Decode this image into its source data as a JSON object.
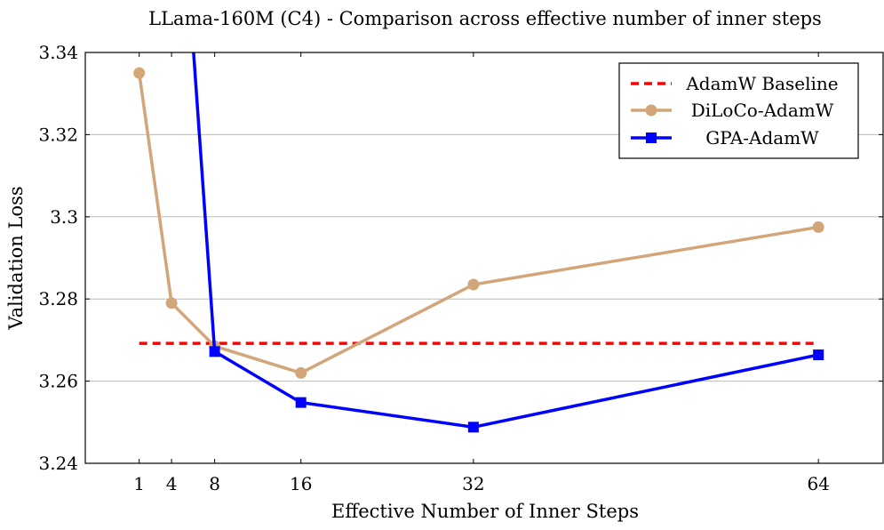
{
  "chart_data": {
    "type": "line",
    "title": "LLama-160M (C4) - Comparison across effective number of inner steps",
    "xlabel": "Effective Number of Inner Steps",
    "ylabel": "Validation Loss",
    "xlim": [
      -4,
      70
    ],
    "ylim": [
      3.24,
      3.34
    ],
    "xticks": [
      1,
      4,
      8,
      16,
      32,
      64
    ],
    "xtick_labels": [
      "1",
      "4",
      "8",
      "16",
      "32",
      "64"
    ],
    "yticks": [
      3.24,
      3.26,
      3.28,
      3.3,
      3.32,
      3.34
    ],
    "ytick_labels": [
      "3.24",
      "3.26",
      "3.28",
      "3.3",
      "3.32",
      "3.34"
    ],
    "grid": "horizontal",
    "legend_position": "top-right",
    "series": [
      {
        "name": "AdamW Baseline",
        "style": "dashed",
        "marker": "none",
        "color": "#ff0000",
        "x": [
          1,
          64
        ],
        "values": [
          3.2692,
          3.2692
        ]
      },
      {
        "name": "DiLoCo-AdamW",
        "style": "solid",
        "marker": "circle",
        "color": "#d2a679",
        "x": [
          1,
          4,
          8,
          16,
          32,
          64
        ],
        "values": [
          3.335,
          3.279,
          3.2685,
          3.262,
          3.2835,
          3.2975
        ]
      },
      {
        "name": "GPA-AdamW",
        "style": "solid",
        "marker": "square",
        "color": "#0000ff",
        "x": [
          6,
          8,
          16,
          32,
          64
        ],
        "values": [
          3.3415,
          3.2672,
          3.2548,
          3.2488,
          3.2664
        ],
        "marked": [
          false,
          true,
          true,
          true,
          true
        ],
        "clip_above": true
      }
    ]
  }
}
